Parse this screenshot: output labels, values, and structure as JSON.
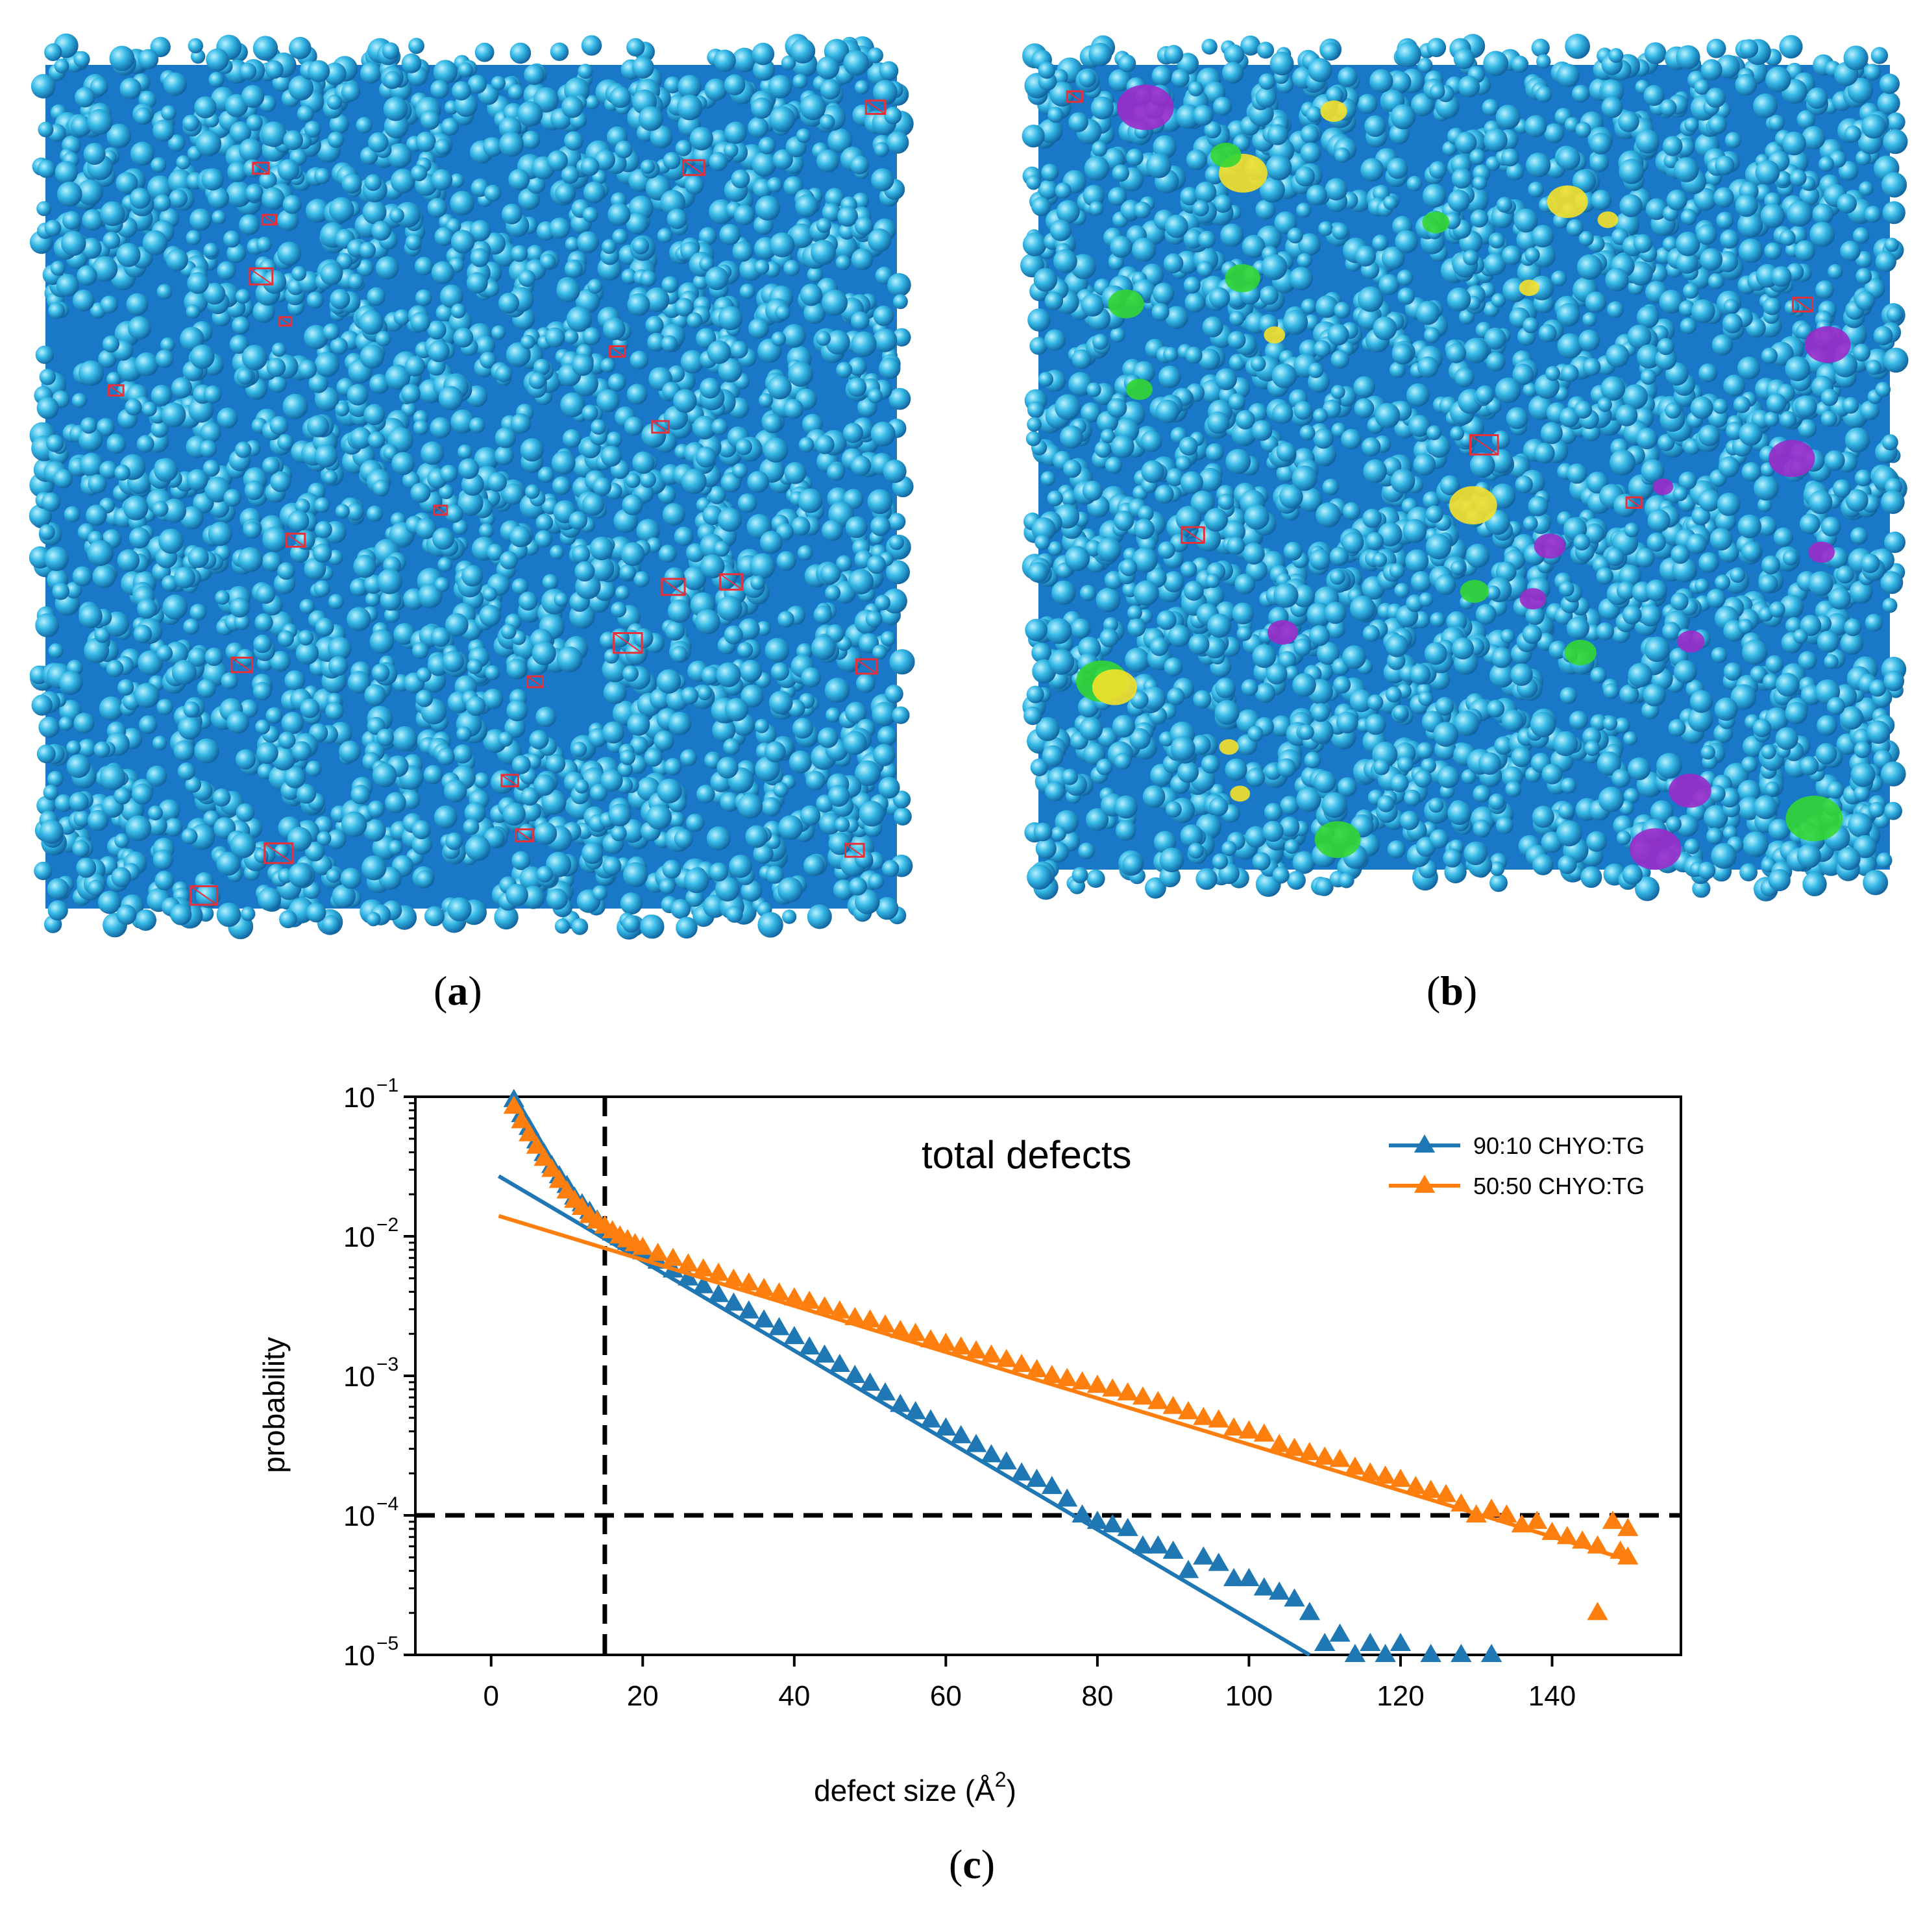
{
  "panels": {
    "a": {
      "open": "(",
      "letter": "a",
      "close": ")"
    },
    "b": {
      "open": "(",
      "letter": "b",
      "close": ")"
    },
    "c": {
      "open": "(",
      "letter": "c",
      "close": ")"
    }
  },
  "colors": {
    "sphere_light": "#35b9e6",
    "sphere_dark": "#1a78c8",
    "defect_red": "#e8303a",
    "defect_yellow": "#f5e02a",
    "defect_green": "#33d633",
    "defect_purple": "#9b2bc9",
    "series_blue": "#1f77b4",
    "series_orange": "#ff7f0e"
  },
  "chart_data": {
    "type": "scatter",
    "annotation": "total defects",
    "xlabel": "defect size (Å",
    "xlabel_sup": "2",
    "xlabel_close": ")",
    "ylabel": "probability",
    "xlim": [
      -10,
      157
    ],
    "ylim": [
      1e-05,
      0.1
    ],
    "yscale": "log",
    "xticks": [
      0,
      20,
      40,
      60,
      80,
      100,
      120,
      140
    ],
    "xtick_labels": [
      "0",
      "20",
      "40",
      "60",
      "80",
      "100",
      "120",
      "140"
    ],
    "yticks": [
      {
        "value": 0.1,
        "base": "10",
        "exp": "−1"
      },
      {
        "value": 0.01,
        "base": "10",
        "exp": "−2"
      },
      {
        "value": 0.001,
        "base": "10",
        "exp": "−3"
      },
      {
        "value": 0.0001,
        "base": "10",
        "exp": "−4"
      },
      {
        "value": 1e-05,
        "base": "10",
        "exp": "−5"
      }
    ],
    "legend_position": "top-right",
    "reference_lines": {
      "vertical_x": 15,
      "horizontal_y": 0.0001
    },
    "series": [
      {
        "name": "90:10 CHYO:TG",
        "color": "#1f77b4",
        "marker": "triangle",
        "points": [
          [
            3,
            0.095
          ],
          [
            4,
            0.074
          ],
          [
            5,
            0.06
          ],
          [
            6,
            0.048
          ],
          [
            7,
            0.039
          ],
          [
            8,
            0.032
          ],
          [
            9,
            0.027
          ],
          [
            10,
            0.023
          ],
          [
            11,
            0.019
          ],
          [
            12,
            0.017
          ],
          [
            13,
            0.015
          ],
          [
            14,
            0.013
          ],
          [
            15,
            0.0115
          ],
          [
            16,
            0.0105
          ],
          [
            17,
            0.0097
          ],
          [
            18,
            0.009
          ],
          [
            19,
            0.0083
          ],
          [
            20,
            0.0077
          ],
          [
            22,
            0.0066
          ],
          [
            24,
            0.0057
          ],
          [
            26,
            0.005
          ],
          [
            28,
            0.0044
          ],
          [
            30,
            0.0038
          ],
          [
            32,
            0.0033
          ],
          [
            34,
            0.0029
          ],
          [
            36,
            0.0025
          ],
          [
            38,
            0.0022
          ],
          [
            40,
            0.0019
          ],
          [
            42,
            0.0016
          ],
          [
            44,
            0.0014
          ],
          [
            46,
            0.0012
          ],
          [
            48,
            0.001
          ],
          [
            50,
            0.00088
          ],
          [
            52,
            0.00075
          ],
          [
            54,
            0.00062
          ],
          [
            56,
            0.00055
          ],
          [
            58,
            0.00048
          ],
          [
            60,
            0.00042
          ],
          [
            62,
            0.00037
          ],
          [
            64,
            0.00032
          ],
          [
            66,
            0.00027
          ],
          [
            68,
            0.00024
          ],
          [
            70,
            0.0002
          ],
          [
            72,
            0.00018
          ],
          [
            74,
            0.00016
          ],
          [
            76,
            0.00013
          ],
          [
            78,
            0.0001
          ],
          [
            80,
            9e-05
          ],
          [
            82,
            8.5e-05
          ],
          [
            84,
            8e-05
          ],
          [
            86,
            6e-05
          ],
          [
            88,
            6e-05
          ],
          [
            90,
            5.5e-05
          ],
          [
            92,
            4e-05
          ],
          [
            94,
            5e-05
          ],
          [
            96,
            4.5e-05
          ],
          [
            98,
            3.5e-05
          ],
          [
            100,
            3.5e-05
          ],
          [
            102,
            3e-05
          ],
          [
            104,
            2.8e-05
          ],
          [
            106,
            2.5e-05
          ],
          [
            108,
            2e-05
          ],
          [
            110,
            1.2e-05
          ],
          [
            112,
            1.4e-05
          ],
          [
            114,
            1e-05
          ],
          [
            116,
            1.2e-05
          ],
          [
            118,
            1e-05
          ],
          [
            120,
            1.2e-05
          ],
          [
            124,
            1e-05
          ],
          [
            128,
            1e-05
          ],
          [
            132,
            1e-05
          ]
        ],
        "fit": [
          [
            1,
            0.027
          ],
          [
            108,
            1e-05
          ]
        ]
      },
      {
        "name": "50:50 CHYO:TG",
        "color": "#ff7f0e",
        "marker": "triangle",
        "points": [
          [
            3,
            0.085
          ],
          [
            4,
            0.067
          ],
          [
            5,
            0.054
          ],
          [
            6,
            0.044
          ],
          [
            7,
            0.036
          ],
          [
            8,
            0.03
          ],
          [
            9,
            0.025
          ],
          [
            10,
            0.021
          ],
          [
            11,
            0.018
          ],
          [
            12,
            0.016
          ],
          [
            13,
            0.014
          ],
          [
            14,
            0.0128
          ],
          [
            15,
            0.0118
          ],
          [
            16,
            0.0109
          ],
          [
            17,
            0.01
          ],
          [
            18,
            0.0094
          ],
          [
            19,
            0.0088
          ],
          [
            20,
            0.0083
          ],
          [
            22,
            0.0075
          ],
          [
            24,
            0.0069
          ],
          [
            26,
            0.0063
          ],
          [
            28,
            0.0058
          ],
          [
            30,
            0.0054
          ],
          [
            32,
            0.0049
          ],
          [
            34,
            0.0046
          ],
          [
            36,
            0.0042
          ],
          [
            38,
            0.0039
          ],
          [
            40,
            0.0036
          ],
          [
            42,
            0.0034
          ],
          [
            44,
            0.0031
          ],
          [
            46,
            0.0029
          ],
          [
            48,
            0.0026
          ],
          [
            50,
            0.0025
          ],
          [
            52,
            0.0023
          ],
          [
            54,
            0.0021
          ],
          [
            56,
            0.002
          ],
          [
            58,
            0.0018
          ],
          [
            60,
            0.0017
          ],
          [
            62,
            0.0016
          ],
          [
            64,
            0.0015
          ],
          [
            66,
            0.0014
          ],
          [
            68,
            0.0013
          ],
          [
            70,
            0.0012
          ],
          [
            72,
            0.0011
          ],
          [
            74,
            0.001
          ],
          [
            76,
            0.00095
          ],
          [
            78,
            0.0009
          ],
          [
            80,
            0.00085
          ],
          [
            82,
            0.0008
          ],
          [
            84,
            0.00075
          ],
          [
            86,
            0.0007
          ],
          [
            88,
            0.00065
          ],
          [
            90,
            0.0006
          ],
          [
            92,
            0.00055
          ],
          [
            94,
            0.0005
          ],
          [
            96,
            0.00048
          ],
          [
            98,
            0.00042
          ],
          [
            100,
            0.0004
          ],
          [
            102,
            0.00038
          ],
          [
            104,
            0.00032
          ],
          [
            106,
            0.0003
          ],
          [
            108,
            0.00028
          ],
          [
            110,
            0.00026
          ],
          [
            112,
            0.00025
          ],
          [
            114,
            0.00022
          ],
          [
            116,
            0.0002
          ],
          [
            118,
            0.00019
          ],
          [
            120,
            0.00018
          ],
          [
            122,
            0.00016
          ],
          [
            124,
            0.00015
          ],
          [
            126,
            0.00014
          ],
          [
            128,
            0.00012
          ],
          [
            130,
            0.0001
          ],
          [
            132,
            0.00011
          ],
          [
            134,
            0.0001
          ],
          [
            136,
            8.5e-05
          ],
          [
            138,
            9e-05
          ],
          [
            140,
            7.5e-05
          ],
          [
            142,
            7e-05
          ],
          [
            144,
            6.5e-05
          ],
          [
            146,
            2e-05
          ],
          [
            146,
            6e-05
          ],
          [
            148,
            9e-05
          ],
          [
            149,
            5.5e-05
          ],
          [
            150,
            8e-05
          ],
          [
            150,
            5e-05
          ]
        ],
        "fit": [
          [
            1,
            0.014
          ],
          [
            150,
            4.8e-05
          ]
        ]
      }
    ]
  }
}
